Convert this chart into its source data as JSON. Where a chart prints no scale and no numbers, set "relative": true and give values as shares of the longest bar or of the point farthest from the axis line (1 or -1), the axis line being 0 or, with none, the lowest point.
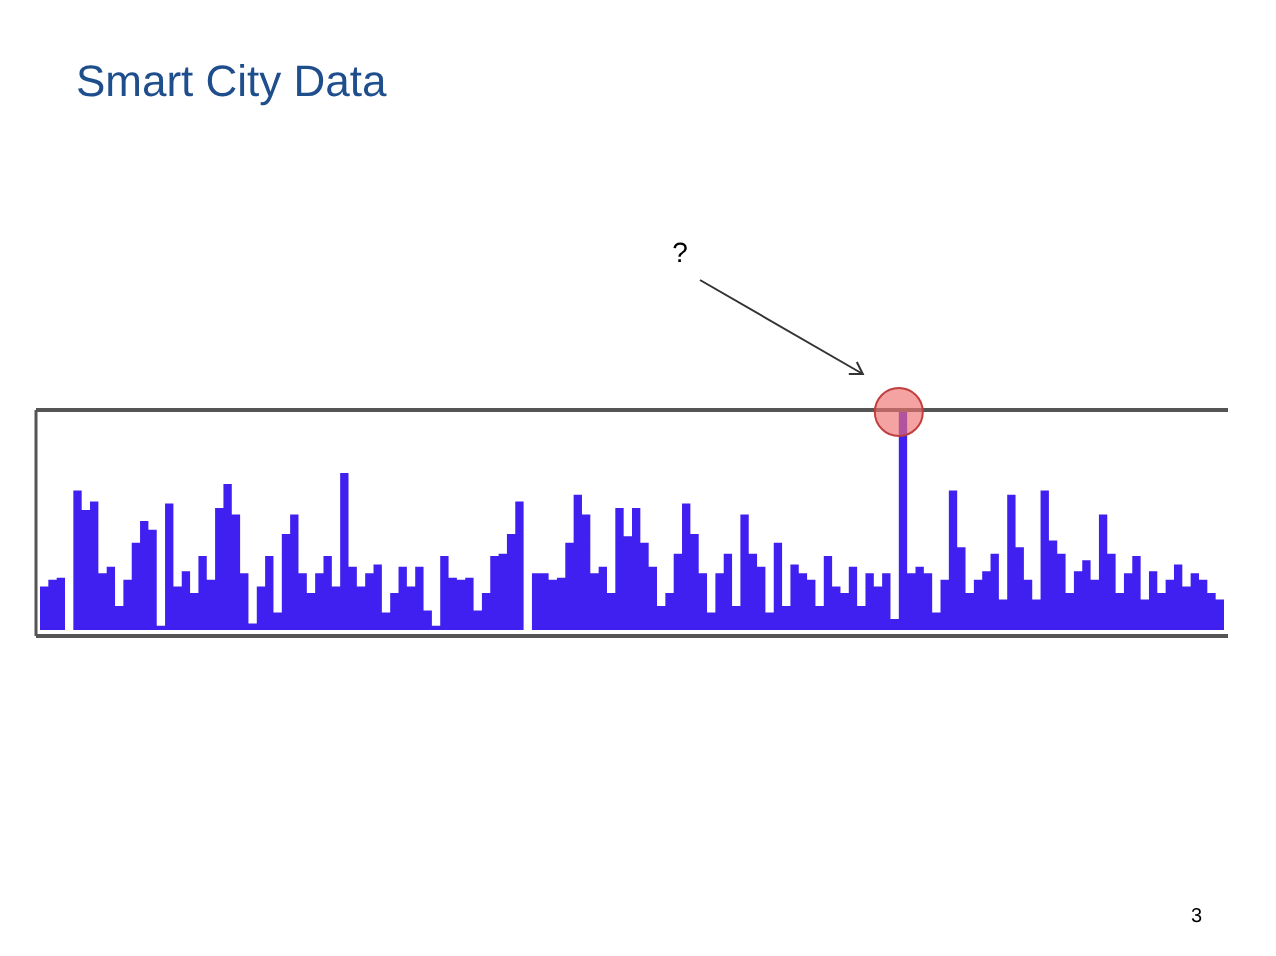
{
  "chart_data": {
    "type": "area",
    "title": "Smart City Data",
    "relative": true,
    "color": "#4020f0",
    "categories": [
      null,
      null,
      null,
      null,
      null,
      null,
      null,
      null,
      null,
      null,
      null,
      null,
      null,
      null,
      null,
      null,
      null,
      null,
      null,
      null,
      null,
      null,
      null,
      null,
      null,
      null,
      null,
      null,
      null,
      null,
      null,
      null,
      null,
      null,
      null,
      null,
      null,
      null,
      null,
      null,
      null,
      null,
      null,
      null,
      null,
      null,
      null,
      null,
      null,
      null,
      null,
      null,
      null,
      null,
      null,
      null,
      null,
      null,
      null,
      null,
      null,
      null,
      null,
      null,
      null,
      null,
      null,
      null,
      null,
      null,
      null,
      null,
      null,
      null,
      null,
      null,
      null,
      null,
      null,
      null,
      null,
      null,
      null,
      null,
      null,
      null,
      null,
      null,
      null,
      null,
      null,
      null,
      null,
      null,
      null,
      null,
      null,
      null,
      null,
      null,
      null,
      null,
      null,
      null,
      null,
      null,
      null,
      null,
      null,
      null,
      null,
      null,
      null,
      null,
      null,
      null,
      null,
      null,
      null,
      null,
      null,
      null,
      null,
      null,
      null,
      null,
      null,
      null,
      null,
      null,
      null,
      null,
      null,
      null,
      null,
      null,
      null,
      null,
      null,
      null,
      null,
      null,
      null
    ],
    "values": [
      0.2,
      0.23,
      0.24,
      0,
      0.64,
      0.55,
      0.59,
      0.26,
      0.29,
      0.11,
      0.23,
      0.4,
      0.5,
      0.46,
      0.02,
      0.58,
      0.2,
      0.27,
      0.17,
      0.34,
      0.23,
      0.56,
      0.67,
      0.53,
      0.26,
      0.03,
      0.2,
      0.34,
      0.08,
      0.44,
      0.53,
      0.26,
      0.17,
      0.26,
      0.34,
      0.2,
      0.72,
      0.29,
      0.2,
      0.26,
      0.3,
      0.08,
      0.17,
      0.29,
      0.2,
      0.29,
      0.09,
      0.02,
      0.34,
      0.24,
      0.23,
      0.24,
      0.09,
      0.17,
      0.34,
      0.35,
      0.44,
      0.59,
      0,
      0.26,
      0.26,
      0.23,
      0.24,
      0.4,
      0.62,
      0.53,
      0.26,
      0.29,
      0.17,
      0.56,
      0.43,
      0.56,
      0.4,
      0.29,
      0.11,
      0.17,
      0.35,
      0.58,
      0.44,
      0.26,
      0.08,
      0.26,
      0.35,
      0.11,
      0.53,
      0.35,
      0.29,
      0.08,
      0.4,
      0.11,
      0.3,
      0.26,
      0.23,
      0.11,
      0.34,
      0.2,
      0.17,
      0.29,
      0.11,
      0.26,
      0.2,
      0.26,
      0.05,
      1,
      0.26,
      0.29,
      0.26,
      0.08,
      0.23,
      0.64,
      0.38,
      0.17,
      0.23,
      0.27,
      0.35,
      0.14,
      0.62,
      0.38,
      0.23,
      0.14,
      0.64,
      0.41,
      0.35,
      0.17,
      0.27,
      0.32,
      0.23,
      0.53,
      0.35,
      0.17,
      0.26,
      0.34,
      0.14,
      0.27,
      0.17,
      0.23,
      0.3,
      0.2,
      0.26,
      0.23,
      0.17,
      0.14,
      0.21
    ],
    "annotations": [
      "?",
      "3"
    ]
  }
}
